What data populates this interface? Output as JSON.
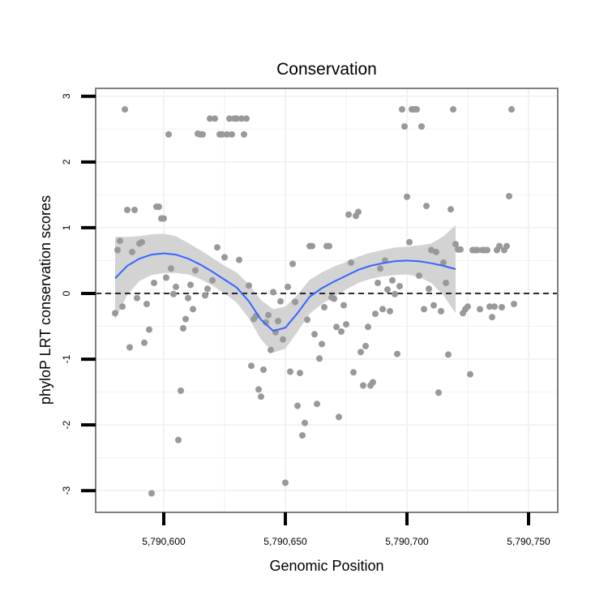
{
  "chart_data": {
    "type": "scatter",
    "title": "Conservation",
    "xlabel": "Genomic Position",
    "ylabel": "phyloP LRT conservation scores",
    "xlim": [
      5790572,
      5790762
    ],
    "ylim": [
      -3.33,
      3.12
    ],
    "x_ticks": [
      5790600,
      5790650,
      5790700,
      5790750
    ],
    "x_tick_labels": [
      "5,790,600",
      "5,790,650",
      "5,790,700",
      "5,790,750"
    ],
    "y_ticks": [
      -3,
      -2,
      -1,
      0,
      1,
      2,
      3
    ],
    "y_tick_labels": [
      "-3",
      "-2",
      "-1",
      "0",
      "1",
      "2",
      "3"
    ],
    "reference_line": {
      "y": 0,
      "style": "dashed"
    },
    "colors": {
      "points": "#999999",
      "smooth": "#3366ff",
      "ribbon": "#d3d3d3",
      "grid": "#f2f2f2",
      "border": "#7f7f7f",
      "ref_line": "#000000"
    },
    "points": [
      [
        5790580,
        -0.3
      ],
      [
        5790581,
        0.66
      ],
      [
        5790582,
        0.8
      ],
      [
        5790583,
        -0.2
      ],
      [
        5790584,
        2.8
      ],
      [
        5790585,
        1.27
      ],
      [
        5790586,
        -0.82
      ],
      [
        5790587,
        0.63
      ],
      [
        5790588,
        1.27
      ],
      [
        5790589,
        -0.07
      ],
      [
        5790590,
        0.76
      ],
      [
        5790591,
        0.78
      ],
      [
        5790592,
        -0.75
      ],
      [
        5790593,
        -0.16
      ],
      [
        5790594,
        -0.55
      ],
      [
        5790595,
        -3.04
      ],
      [
        5790596,
        0.16
      ],
      [
        5790597,
        1.32
      ],
      [
        5790598,
        1.32
      ],
      [
        5790599,
        1.14
      ],
      [
        5790600,
        1.14
      ],
      [
        5790601,
        0.24
      ],
      [
        5790602,
        2.42
      ],
      [
        5790603,
        0.38
      ],
      [
        5790604,
        -0.01
      ],
      [
        5790605,
        0.1
      ],
      [
        5790606,
        -2.23
      ],
      [
        5790607,
        -1.48
      ],
      [
        5790608,
        -0.53
      ],
      [
        5790609,
        -0.39
      ],
      [
        5790610,
        -0.07
      ],
      [
        5790611,
        0.13
      ],
      [
        5790612,
        -0.24
      ],
      [
        5790613,
        0.35
      ],
      [
        5790614,
        2.43
      ],
      [
        5790615,
        2.42
      ],
      [
        5790616,
        2.42
      ],
      [
        5790617,
        -0.03
      ],
      [
        5790618,
        0.07
      ],
      [
        5790619,
        2.66
      ],
      [
        5790620,
        0.2
      ],
      [
        5790621,
        2.66
      ],
      [
        5790622,
        0.7
      ],
      [
        5790623,
        2.42
      ],
      [
        5790624,
        2.42
      ],
      [
        5790625,
        0.55
      ],
      [
        5790626,
        2.42
      ],
      [
        5790627,
        2.66
      ],
      [
        5790628,
        2.42
      ],
      [
        5790629,
        2.66
      ],
      [
        5790630,
        2.66
      ],
      [
        5790631,
        0.51
      ],
      [
        5790632,
        2.66
      ],
      [
        5790633,
        2.42
      ],
      [
        5790634,
        2.66
      ],
      [
        5790635,
        0.12
      ],
      [
        5790636,
        -1.1
      ],
      [
        5790637,
        -0.39
      ],
      [
        5790638,
        -0.34
      ],
      [
        5790639,
        -1.46
      ],
      [
        5790640,
        -1.57
      ],
      [
        5790641,
        -1.16
      ],
      [
        5790642,
        -0.44
      ],
      [
        5790643,
        -0.33
      ],
      [
        5790644,
        -0.86
      ],
      [
        5790645,
        0.02
      ],
      [
        5790646,
        -0.59
      ],
      [
        5790647,
        -0.42
      ],
      [
        5790648,
        -0.12
      ],
      [
        5790649,
        -0.7
      ],
      [
        5790650,
        -2.88
      ],
      [
        5790651,
        0.1
      ],
      [
        5790652,
        -1.19
      ],
      [
        5790653,
        0.45
      ],
      [
        5790654,
        -0.13
      ],
      [
        5790655,
        -1.71
      ],
      [
        5790656,
        -1.21
      ],
      [
        5790657,
        -2.16
      ],
      [
        5790658,
        -1.97
      ],
      [
        5790659,
        -0.4
      ],
      [
        5790660,
        0.72
      ],
      [
        5790661,
        0.72
      ],
      [
        5790662,
        -0.62
      ],
      [
        5790663,
        -1.68
      ],
      [
        5790664,
        -0.99
      ],
      [
        5790665,
        -0.77
      ],
      [
        5790666,
        -0.21
      ],
      [
        5790667,
        0.72
      ],
      [
        5790668,
        0.72
      ],
      [
        5790669,
        -0.06
      ],
      [
        5790670,
        -0.08
      ],
      [
        5790671,
        -0.51
      ],
      [
        5790672,
        -1.88
      ],
      [
        5790673,
        -0.58
      ],
      [
        5790674,
        -0.18
      ],
      [
        5790675,
        -0.47
      ],
      [
        5790676,
        1.2
      ],
      [
        5790677,
        0.47
      ],
      [
        5790678,
        -1.2
      ],
      [
        5790679,
        1.18
      ],
      [
        5790680,
        1.24
      ],
      [
        5790681,
        -0.89
      ],
      [
        5790682,
        -1.4
      ],
      [
        5790683,
        -0.8
      ],
      [
        5790684,
        -0.51
      ],
      [
        5790685,
        -1.4
      ],
      [
        5790686,
        -1.35
      ],
      [
        5790687,
        -0.31
      ],
      [
        5790688,
        0.16
      ],
      [
        5790689,
        0.38
      ],
      [
        5790690,
        -0.24
      ],
      [
        5790691,
        0.5
      ],
      [
        5790692,
        0.06
      ],
      [
        5790693,
        -0.27
      ],
      [
        5790694,
        0.2
      ],
      [
        5790695,
        -0.01
      ],
      [
        5790696,
        -0.92
      ],
      [
        5790697,
        0.11
      ],
      [
        5790698,
        2.8
      ],
      [
        5790699,
        2.54
      ],
      [
        5790700,
        1.47
      ],
      [
        5790701,
        0.78
      ],
      [
        5790702,
        2.8
      ],
      [
        5790703,
        2.8
      ],
      [
        5790704,
        2.8
      ],
      [
        5790705,
        0.27
      ],
      [
        5790706,
        2.54
      ],
      [
        5790707,
        -0.24
      ],
      [
        5790708,
        1.33
      ],
      [
        5790709,
        0.07
      ],
      [
        5790710,
        0.66
      ],
      [
        5790711,
        -0.18
      ],
      [
        5790712,
        0.63
      ],
      [
        5790713,
        -1.51
      ],
      [
        5790714,
        -0.27
      ],
      [
        5790715,
        0.47
      ],
      [
        5790716,
        0.16
      ],
      [
        5790717,
        -0.93
      ],
      [
        5790718,
        1.28
      ],
      [
        5790719,
        2.8
      ],
      [
        5790720,
        0.75
      ],
      [
        5790721,
        0.67
      ],
      [
        5790722,
        0.67
      ],
      [
        5790723,
        -0.3
      ],
      [
        5790724,
        -0.24
      ],
      [
        5790725,
        -0.2
      ],
      [
        5790726,
        -1.23
      ],
      [
        5790727,
        0.66
      ],
      [
        5790728,
        0.66
      ],
      [
        5790729,
        0.66
      ],
      [
        5790730,
        -0.24
      ],
      [
        5790731,
        0.66
      ],
      [
        5790732,
        0.66
      ],
      [
        5790733,
        0.66
      ],
      [
        5790734,
        -0.2
      ],
      [
        5790735,
        -0.36
      ],
      [
        5790736,
        -0.2
      ],
      [
        5790737,
        0.66
      ],
      [
        5790738,
        0.72
      ],
      [
        5790739,
        -0.21
      ],
      [
        5790740,
        0.66
      ],
      [
        5790741,
        0.72
      ],
      [
        5790742,
        1.48
      ],
      [
        5790743,
        2.8
      ],
      [
        5790744,
        -0.16
      ]
    ],
    "smooth": [
      [
        5790580,
        0.23
      ],
      [
        5790585,
        0.42
      ],
      [
        5790590,
        0.53
      ],
      [
        5790595,
        0.59
      ],
      [
        5790600,
        0.61
      ],
      [
        5790605,
        0.59
      ],
      [
        5790610,
        0.53
      ],
      [
        5790615,
        0.44
      ],
      [
        5790620,
        0.33
      ],
      [
        5790625,
        0.21
      ],
      [
        5790630,
        0.09
      ],
      [
        5790635,
        -0.12
      ],
      [
        5790640,
        -0.4
      ],
      [
        5790645,
        -0.57
      ],
      [
        5790650,
        -0.52
      ],
      [
        5790655,
        -0.3
      ],
      [
        5790660,
        -0.05
      ],
      [
        5790665,
        0.08
      ],
      [
        5790670,
        0.18
      ],
      [
        5790675,
        0.27
      ],
      [
        5790680,
        0.36
      ],
      [
        5790685,
        0.42
      ],
      [
        5790690,
        0.46
      ],
      [
        5790695,
        0.49
      ],
      [
        5790700,
        0.5
      ],
      [
        5790705,
        0.49
      ],
      [
        5790710,
        0.46
      ],
      [
        5790715,
        0.42
      ],
      [
        5790720,
        0.37
      ]
    ],
    "ribbon": [
      [
        5790580,
        -0.4,
        0.86
      ],
      [
        5790585,
        -0.02,
        0.86
      ],
      [
        5790590,
        0.19,
        0.87
      ],
      [
        5790595,
        0.28,
        0.9
      ],
      [
        5790600,
        0.31,
        0.91
      ],
      [
        5790605,
        0.31,
        0.87
      ],
      [
        5790610,
        0.29,
        0.77
      ],
      [
        5790615,
        0.22,
        0.66
      ],
      [
        5790620,
        0.12,
        0.54
      ],
      [
        5790625,
        0.0,
        0.42
      ],
      [
        5790630,
        -0.14,
        0.32
      ],
      [
        5790635,
        -0.38,
        0.14
      ],
      [
        5790640,
        -0.7,
        -0.1
      ],
      [
        5790645,
        -0.9,
        -0.24
      ],
      [
        5790650,
        -0.84,
        -0.2
      ],
      [
        5790655,
        -0.58,
        -0.02
      ],
      [
        5790660,
        -0.31,
        0.21
      ],
      [
        5790665,
        -0.16,
        0.32
      ],
      [
        5790670,
        -0.05,
        0.41
      ],
      [
        5790675,
        0.06,
        0.48
      ],
      [
        5790680,
        0.16,
        0.56
      ],
      [
        5790685,
        0.22,
        0.62
      ],
      [
        5790690,
        0.26,
        0.66
      ],
      [
        5790695,
        0.28,
        0.7
      ],
      [
        5790700,
        0.29,
        0.71
      ],
      [
        5790705,
        0.25,
        0.73
      ],
      [
        5790710,
        0.16,
        0.76
      ],
      [
        5790715,
        -0.03,
        0.87
      ],
      [
        5790720,
        -0.3,
        1.04
      ]
    ]
  }
}
